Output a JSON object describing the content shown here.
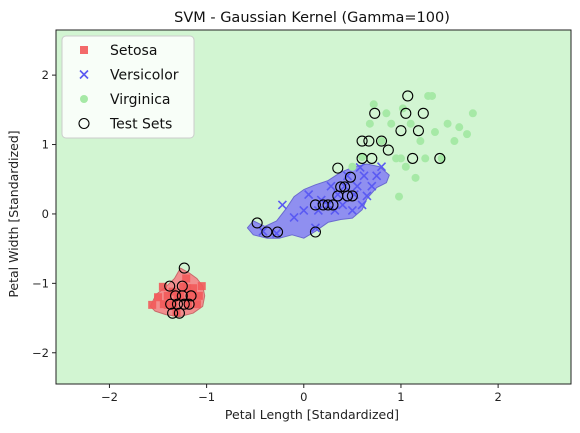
{
  "chart_data": {
    "type": "scatter",
    "title": "SVM - Gaussian Kernel (Gamma=100)",
    "xlabel": "Petal Length [Standardized]",
    "ylabel": "Petal Width [Standardized]",
    "xlim": [
      -2.55,
      2.75
    ],
    "ylim": [
      -2.45,
      2.65
    ],
    "xticks": [
      -2,
      -1,
      0,
      1,
      2
    ],
    "yticks": [
      -2,
      -1,
      0,
      1,
      2
    ],
    "grid": false,
    "legend_position": "top-left",
    "background_region_color": "#d2f5d2",
    "decision_regions": [
      {
        "class": "Setosa",
        "color": "#f28e8e",
        "outline": "#c86b6b",
        "polygon": [
          [
            -1.58,
            -1.33
          ],
          [
            -1.52,
            -1.16
          ],
          [
            -1.42,
            -1.05
          ],
          [
            -1.33,
            -0.93
          ],
          [
            -1.27,
            -0.78
          ],
          [
            -1.18,
            -0.85
          ],
          [
            -1.1,
            -0.93
          ],
          [
            -1.04,
            -1.04
          ],
          [
            -1.02,
            -1.18
          ],
          [
            -1.04,
            -1.33
          ],
          [
            -1.14,
            -1.43
          ],
          [
            -1.28,
            -1.48
          ],
          [
            -1.42,
            -1.45
          ],
          [
            -1.53,
            -1.4
          ]
        ]
      },
      {
        "class": "Versicolor",
        "color": "#8f8ff0",
        "outline": "#6a6ad0",
        "polygon": [
          [
            -0.52,
            -0.1
          ],
          [
            -0.4,
            -0.18
          ],
          [
            -0.28,
            -0.1
          ],
          [
            -0.18,
            0.08
          ],
          [
            -0.1,
            0.25
          ],
          [
            0.0,
            0.35
          ],
          [
            0.12,
            0.42
          ],
          [
            0.25,
            0.48
          ],
          [
            0.38,
            0.6
          ],
          [
            0.52,
            0.68
          ],
          [
            0.65,
            0.72
          ],
          [
            0.78,
            0.68
          ],
          [
            0.88,
            0.56
          ],
          [
            0.85,
            0.45
          ],
          [
            0.75,
            0.38
          ],
          [
            0.65,
            0.22
          ],
          [
            0.6,
            0.06
          ],
          [
            0.5,
            -0.06
          ],
          [
            0.38,
            -0.08
          ],
          [
            0.25,
            -0.12
          ],
          [
            0.12,
            -0.25
          ],
          [
            0.0,
            -0.35
          ],
          [
            -0.12,
            -0.3
          ],
          [
            -0.25,
            -0.35
          ],
          [
            -0.38,
            -0.35
          ],
          [
            -0.52,
            -0.3
          ],
          [
            -0.58,
            -0.2
          ]
        ]
      }
    ],
    "series": [
      {
        "name": "Setosa",
        "marker": "square",
        "color": "#f25a5a",
        "points": [
          [
            -1.56,
            -1.31
          ],
          [
            -1.5,
            -1.2
          ],
          [
            -1.45,
            -1.05
          ],
          [
            -1.44,
            -1.3
          ],
          [
            -1.4,
            -1.18
          ],
          [
            -1.35,
            -1.12
          ],
          [
            -1.34,
            -1.3
          ],
          [
            -1.31,
            -1.42
          ],
          [
            -1.27,
            -1.18
          ],
          [
            -1.24,
            -1.05
          ],
          [
            -1.21,
            -0.93
          ],
          [
            -1.19,
            -1.3
          ],
          [
            -1.16,
            -1.18
          ],
          [
            -1.14,
            -1.07
          ],
          [
            -1.1,
            -1.3
          ],
          [
            -1.08,
            -1.18
          ],
          [
            -1.05,
            -1.04
          ],
          [
            -1.4,
            -1.31
          ],
          [
            -1.3,
            -1.2
          ],
          [
            -1.2,
            -1.07
          ]
        ]
      },
      {
        "name": "Versicolor",
        "marker": "x",
        "color": "#5a5af2",
        "points": [
          [
            -0.42,
            -0.25
          ],
          [
            -0.28,
            -0.28
          ],
          [
            -0.22,
            0.13
          ],
          [
            -0.1,
            -0.05
          ],
          [
            0.0,
            0.05
          ],
          [
            0.05,
            0.28
          ],
          [
            0.12,
            -0.2
          ],
          [
            0.15,
            0.05
          ],
          [
            0.18,
            0.2
          ],
          [
            0.25,
            0.13
          ],
          [
            0.28,
            0.4
          ],
          [
            0.32,
            0.05
          ],
          [
            0.35,
            0.28
          ],
          [
            0.4,
            0.13
          ],
          [
            0.42,
            0.4
          ],
          [
            0.45,
            0.55
          ],
          [
            0.5,
            0.05
          ],
          [
            0.52,
            0.28
          ],
          [
            0.55,
            0.4
          ],
          [
            0.6,
            0.13
          ],
          [
            0.62,
            0.55
          ],
          [
            0.65,
            0.26
          ],
          [
            0.7,
            0.4
          ],
          [
            0.75,
            0.55
          ],
          [
            0.8,
            0.68
          ],
          [
            0.58,
            0.67
          ]
        ]
      },
      {
        "name": "Virginica",
        "marker": "circle",
        "color": "#a6e9a6",
        "points": [
          [
            0.6,
            0.82
          ],
          [
            0.68,
            1.3
          ],
          [
            0.72,
            1.58
          ],
          [
            0.8,
            1.05
          ],
          [
            0.85,
            1.45
          ],
          [
            0.9,
            1.3
          ],
          [
            0.95,
            0.8
          ],
          [
            1.0,
            0.8
          ],
          [
            1.02,
            1.52
          ],
          [
            1.1,
            1.3
          ],
          [
            1.15,
            0.52
          ],
          [
            1.2,
            1.05
          ],
          [
            1.25,
            0.8
          ],
          [
            1.28,
            1.7
          ],
          [
            1.32,
            1.7
          ],
          [
            1.35,
            1.18
          ],
          [
            1.42,
            0.8
          ],
          [
            1.48,
            1.3
          ],
          [
            1.55,
            1.05
          ],
          [
            1.6,
            1.25
          ],
          [
            1.68,
            1.15
          ],
          [
            1.74,
            1.45
          ],
          [
            1.05,
            0.68
          ],
          [
            0.98,
            0.25
          ],
          [
            0.5,
            0.68
          ]
        ]
      },
      {
        "name": "Test Sets",
        "marker": "open-circle",
        "color": "#000000",
        "points": [
          [
            -1.23,
            -0.78
          ],
          [
            -1.38,
            -1.04
          ],
          [
            -1.25,
            -1.04
          ],
          [
            -1.32,
            -1.18
          ],
          [
            -1.25,
            -1.18
          ],
          [
            -1.16,
            -1.18
          ],
          [
            -1.37,
            -1.3
          ],
          [
            -1.3,
            -1.3
          ],
          [
            -1.23,
            -1.3
          ],
          [
            -1.18,
            -1.3
          ],
          [
            -1.35,
            -1.43
          ],
          [
            -1.28,
            -1.43
          ],
          [
            -0.48,
            -0.13
          ],
          [
            -0.38,
            -0.26
          ],
          [
            -0.27,
            -0.26
          ],
          [
            0.12,
            -0.26
          ],
          [
            0.12,
            0.13
          ],
          [
            0.2,
            0.13
          ],
          [
            0.25,
            0.13
          ],
          [
            0.3,
            0.13
          ],
          [
            0.35,
            0.26
          ],
          [
            0.38,
            0.39
          ],
          [
            0.42,
            0.39
          ],
          [
            0.45,
            0.26
          ],
          [
            0.5,
            0.26
          ],
          [
            0.48,
            0.53
          ],
          [
            0.35,
            0.66
          ],
          [
            0.6,
            0.8
          ],
          [
            0.7,
            0.8
          ],
          [
            0.6,
            1.05
          ],
          [
            0.67,
            1.05
          ],
          [
            0.8,
            1.05
          ],
          [
            0.73,
            1.45
          ],
          [
            0.87,
            0.92
          ],
          [
            1.0,
            1.2
          ],
          [
            1.05,
            1.45
          ],
          [
            1.07,
            1.7
          ],
          [
            1.12,
            0.8
          ],
          [
            1.18,
            1.2
          ],
          [
            1.23,
            1.45
          ],
          [
            1.4,
            0.8
          ]
        ]
      }
    ]
  }
}
